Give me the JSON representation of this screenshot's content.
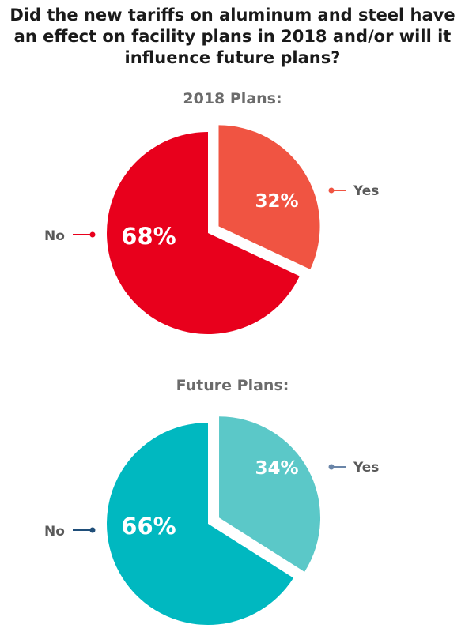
{
  "title": "Did the new tariffs on aluminum and steel have an effect on facility plans in 2018 and/or will it influence future plans?",
  "title_lines": [
    "Did the new tariffs on aluminum and steel have",
    "an effect on facility plans in 2018 and/or will it",
    "influence future plans?"
  ],
  "chart_data": [
    {
      "type": "pie",
      "title": "2018 Plans:",
      "categories": [
        "Yes",
        "No"
      ],
      "values": [
        32,
        68
      ],
      "value_labels": [
        "32%",
        "68%"
      ],
      "colors": [
        "#f05442",
        "#e8001c"
      ],
      "leader_colors": [
        "#f05442",
        "#e8001c"
      ],
      "legend": "labels beside each slice with leader lines",
      "exploded": "Yes"
    },
    {
      "type": "pie",
      "title": "Future Plans:",
      "categories": [
        "Yes",
        "No"
      ],
      "values": [
        34,
        66
      ],
      "value_labels": [
        "34%",
        "66%"
      ],
      "colors": [
        "#5bc8c8",
        "#00b8c0"
      ],
      "leader_colors": [
        "#6a85a8",
        "#1f4e79"
      ],
      "legend": "labels beside each slice with leader lines",
      "exploded": "Yes"
    }
  ]
}
